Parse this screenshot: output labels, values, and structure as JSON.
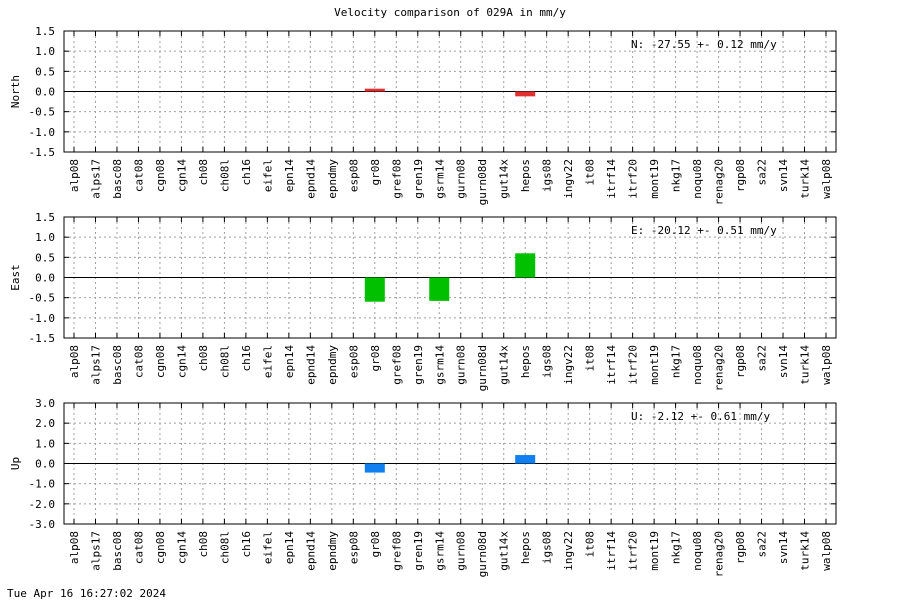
{
  "title": "Velocity comparison of 029A in mm/y",
  "footer": "Tue Apr 16 16:27:02 2024",
  "chart_data": [
    {
      "type": "bar",
      "ylabel": "North",
      "annotation": "N: -27.55 +-  0.12 mm/y",
      "color": "#e03030",
      "ylim": [
        -1.5,
        1.5
      ],
      "yticks": [
        1.5,
        1.0,
        0.5,
        0.0,
        -0.5,
        -1.0,
        -1.5
      ],
      "ytick_labels": [
        "1.5",
        "1.0",
        "0.5",
        "0.0",
        "-0.5",
        "-1.0",
        "-1.5"
      ],
      "categories": [
        "alp08",
        "alps17",
        "basc08",
        "cat08",
        "cgn08",
        "cgn14",
        "ch08",
        "ch08l",
        "ch16",
        "eifel",
        "epn14",
        "epnd14",
        "epndmy",
        "esp08",
        "gr08",
        "gref08",
        "gren19",
        "gsrm14",
        "gurn08",
        "gurn08d",
        "gut14x",
        "hepos",
        "igs08",
        "ingv22",
        "it08",
        "itrf14",
        "itrf20",
        "mont19",
        "nkg17",
        "noqu08",
        "renag20",
        "rgp08",
        "sa22",
        "svn14",
        "turk14",
        "walp08"
      ],
      "values": [
        null,
        null,
        null,
        null,
        null,
        null,
        null,
        null,
        null,
        null,
        null,
        null,
        null,
        null,
        0.07,
        null,
        null,
        null,
        null,
        null,
        null,
        -0.12,
        null,
        null,
        null,
        null,
        null,
        null,
        null,
        null,
        null,
        null,
        null,
        null,
        null,
        null
      ]
    },
    {
      "type": "bar",
      "ylabel": "East",
      "annotation": "E: -20.12 +-  0.51 mm/y",
      "color": "#00c000",
      "ylim": [
        -1.5,
        1.5
      ],
      "yticks": [
        1.5,
        1.0,
        0.5,
        0.0,
        -0.5,
        -1.0,
        -1.5
      ],
      "ytick_labels": [
        "1.5",
        "1.0",
        "0.5",
        "0.0",
        "-0.5",
        "-1.0",
        "-1.5"
      ],
      "categories": [
        "alp08",
        "alps17",
        "basc08",
        "cat08",
        "cgn08",
        "cgn14",
        "ch08",
        "ch08l",
        "ch16",
        "eifel",
        "epn14",
        "epnd14",
        "epndmy",
        "esp08",
        "gr08",
        "gref08",
        "gren19",
        "gsrm14",
        "gurn08",
        "gurn08d",
        "gut14x",
        "hepos",
        "igs08",
        "ingv22",
        "it08",
        "itrf14",
        "itrf20",
        "mont19",
        "nkg17",
        "noqu08",
        "renag20",
        "rgp08",
        "sa22",
        "svn14",
        "turk14",
        "walp08"
      ],
      "values": [
        null,
        null,
        null,
        null,
        null,
        null,
        null,
        null,
        null,
        null,
        null,
        null,
        null,
        null,
        -0.6,
        null,
        null,
        -0.58,
        null,
        null,
        null,
        0.6,
        null,
        null,
        null,
        null,
        null,
        null,
        null,
        null,
        null,
        null,
        null,
        null,
        null,
        null
      ]
    },
    {
      "type": "bar",
      "ylabel": "Up",
      "annotation": "U:  -2.12 +-  0.61 mm/y",
      "color": "#1080f0",
      "ylim": [
        -3.0,
        3.0
      ],
      "yticks": [
        3.0,
        2.0,
        1.0,
        0.0,
        -1.0,
        -2.0,
        -3.0
      ],
      "ytick_labels": [
        "3.0",
        "2.0",
        "1.0",
        "0.0",
        "-1.0",
        "-2.0",
        "-3.0"
      ],
      "categories": [
        "alp08",
        "alps17",
        "basc08",
        "cat08",
        "cgn08",
        "cgn14",
        "ch08",
        "ch08l",
        "ch16",
        "eifel",
        "epn14",
        "epnd14",
        "epndmy",
        "esp08",
        "gr08",
        "gref08",
        "gren19",
        "gsrm14",
        "gurn08",
        "gurn08d",
        "gut14x",
        "hepos",
        "igs08",
        "ingv22",
        "it08",
        "itrf14",
        "itrf20",
        "mont19",
        "nkg17",
        "noqu08",
        "renag20",
        "rgp08",
        "sa22",
        "svn14",
        "turk14",
        "walp08"
      ],
      "values": [
        null,
        null,
        null,
        null,
        null,
        null,
        null,
        null,
        null,
        null,
        null,
        null,
        null,
        null,
        -0.45,
        null,
        null,
        null,
        null,
        null,
        null,
        0.42,
        null,
        null,
        null,
        null,
        null,
        null,
        null,
        null,
        null,
        null,
        null,
        null,
        null,
        null
      ]
    }
  ]
}
